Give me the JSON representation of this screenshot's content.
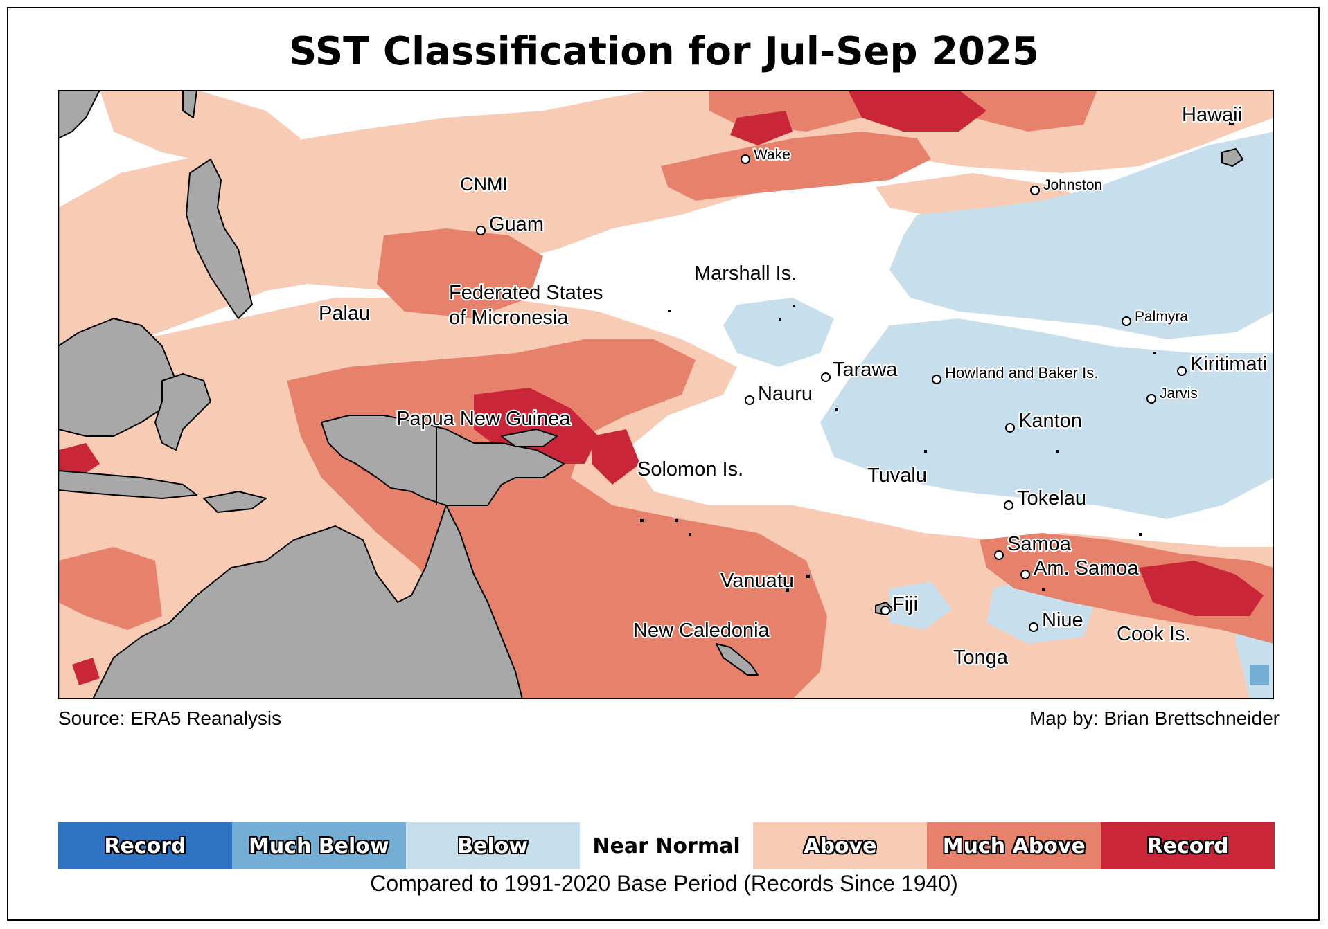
{
  "title": "SST Classification for Jul-Sep 2025",
  "source": "Source: ERA5 Reanalysis",
  "credit": "Map by: Brian Brettschneider",
  "footnote": "Compared to 1991-2020 Base Period   (Records Since 1940)",
  "colors": {
    "record_below": "#2f74c2",
    "much_below": "#74aed4",
    "below": "#c7deed",
    "near_normal": "#ffffff",
    "above": "#f8cbb4",
    "much_above": "#e6816c",
    "record_above": "#c9263a",
    "land": "#a8a8a8"
  },
  "legend": [
    {
      "label": "Record",
      "color": "#2f74c2",
      "style": "outlined"
    },
    {
      "label": "Much Below",
      "color": "#74aed4",
      "style": "outlined"
    },
    {
      "label": "Below",
      "color": "#c7deed",
      "style": "outlined"
    },
    {
      "label": "Near Normal",
      "color": "#ffffff",
      "style": "plain"
    },
    {
      "label": "Above",
      "color": "#f8cbb4",
      "style": "outlined"
    },
    {
      "label": "Much Above",
      "color": "#e6816c",
      "style": "outlined"
    },
    {
      "label": "Record",
      "color": "#c9263a",
      "style": "outlined"
    }
  ],
  "places": {
    "wake": "Wake",
    "hawaii": "Hawaii",
    "johnston": "Johnston",
    "cnmi": "CNMI",
    "guam": "Guam",
    "marshall": "Marshall Is.",
    "fsm_1": "Federated States",
    "fsm_2": "of Micronesia",
    "palau": "Palau",
    "palmyra": "Palmyra",
    "tarawa": "Tarawa",
    "howland": "Howland and Baker Is.",
    "kiritimati": "Kiritimati",
    "nauru": "Nauru",
    "jarvis": "Jarvis",
    "png": "Papua New Guinea",
    "kanton": "Kanton",
    "solomon": "Solomon Is.",
    "tuvalu": "Tuvalu",
    "tokelau": "Tokelau",
    "samoa": "Samoa",
    "am_samoa": "Am. Samoa",
    "vanuatu": "Vanuatu",
    "fiji": "Fiji",
    "niue": "Niue",
    "new_caledonia": "New Caledonia",
    "cook": "Cook Is.",
    "tonga": "Tonga"
  }
}
